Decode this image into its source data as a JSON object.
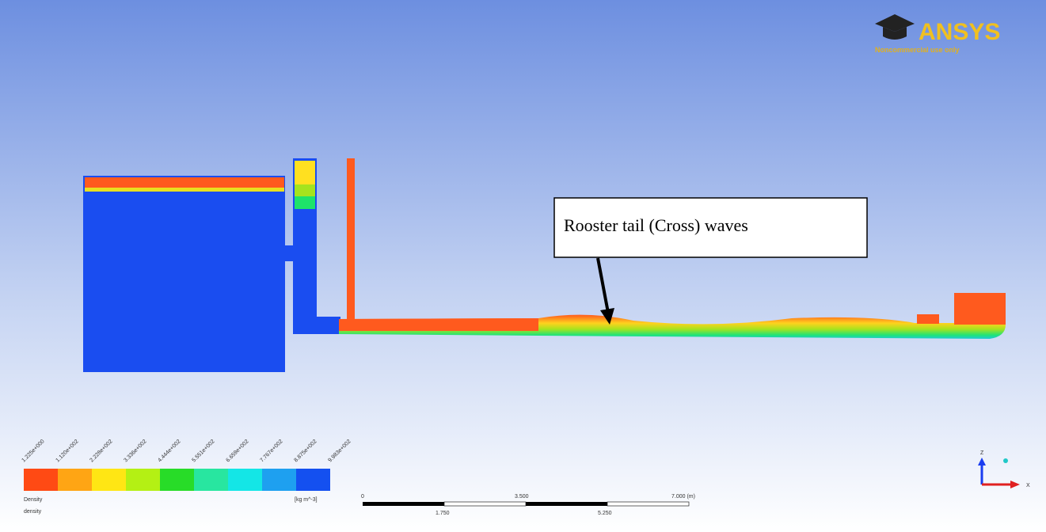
{
  "logo": {
    "brand": "ANSYS",
    "note": "Noncommercial use only"
  },
  "annotation": "Rooster tail (Cross) waves",
  "legend": {
    "labels": [
      "1.225e+000",
      "1.120e+002",
      "2.228e+002",
      "3.336e+002",
      "4.444e+002",
      "5.551e+002",
      "6.659e+002",
      "7.767e+002",
      "8.875e+002",
      "9.983e+002"
    ],
    "variable": "Density",
    "field": "density",
    "unit": "[kg m^-3]"
  },
  "scale_bar": {
    "top": [
      "0",
      "3.500",
      "7.000 (m)"
    ],
    "bottom": [
      "1.750",
      "5.250"
    ]
  },
  "axes": {
    "vertical": "Z",
    "horizontal": "X"
  }
}
